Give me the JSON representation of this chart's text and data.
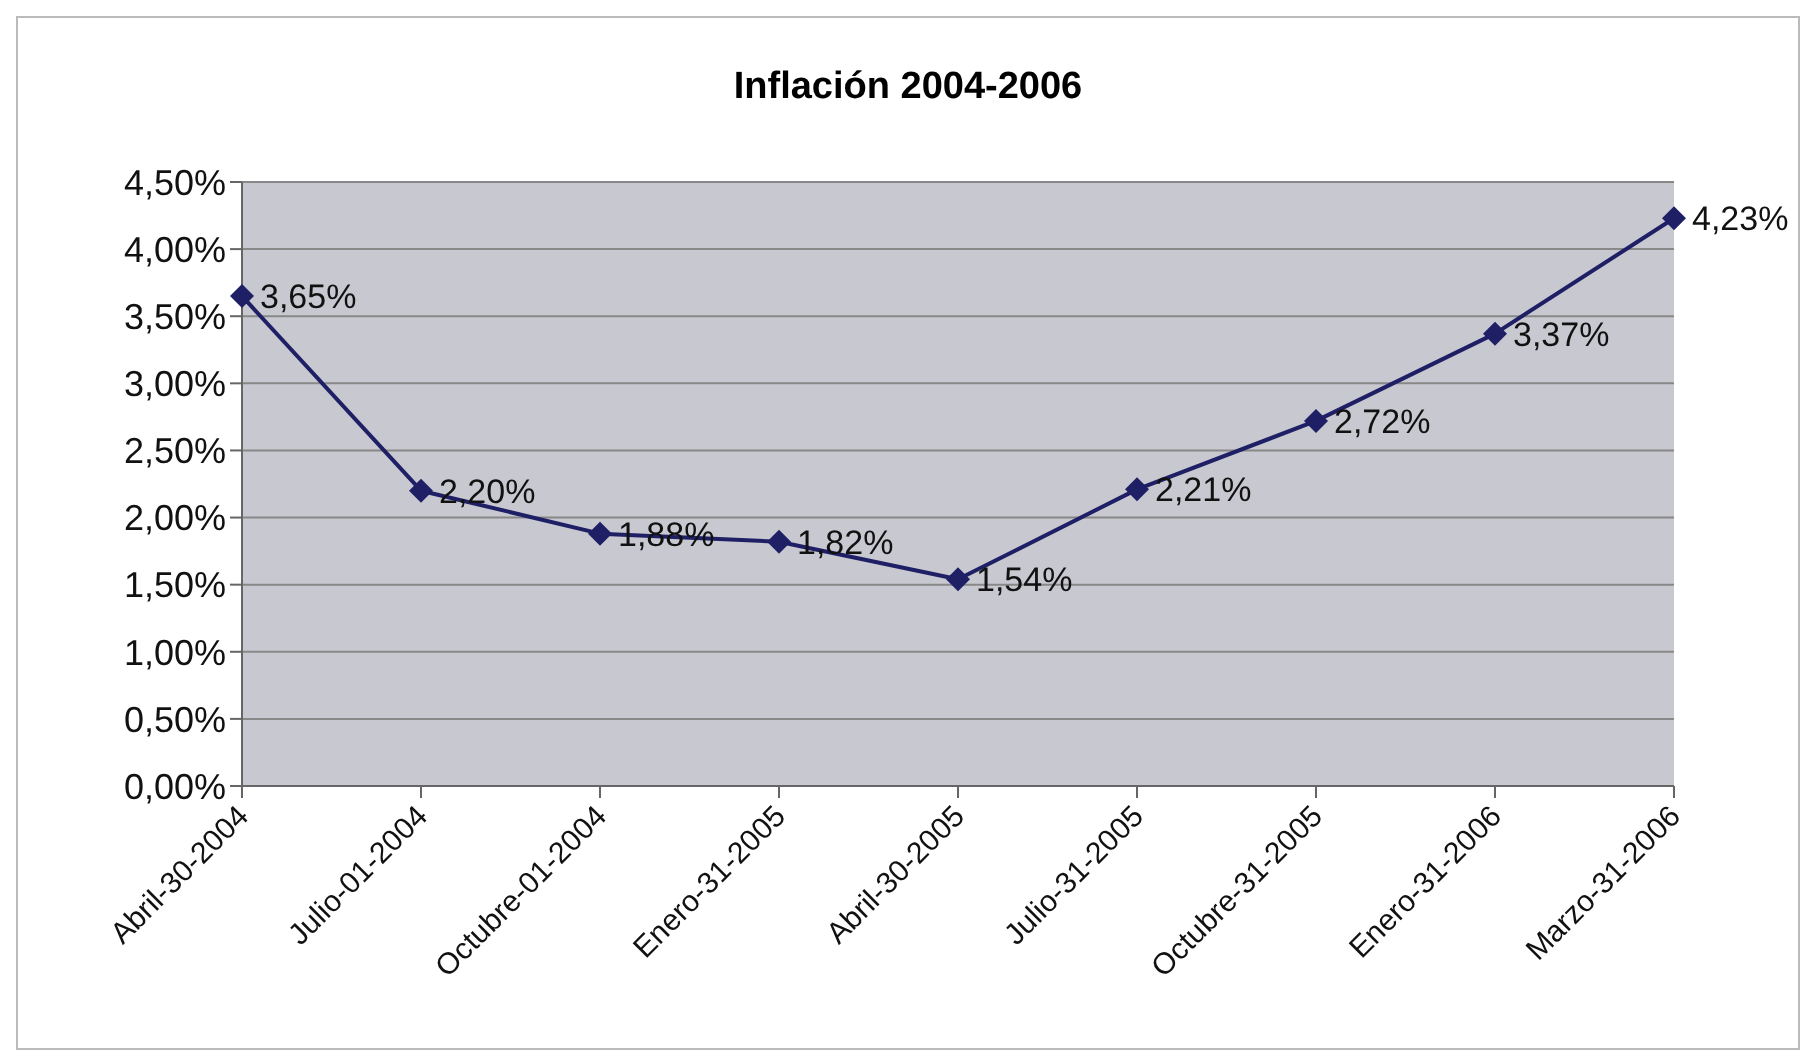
{
  "chart_data": {
    "type": "line",
    "title": "Inflación 2004-2006",
    "categories": [
      "Abril-30-2004",
      "Julio-01-2004",
      "Octubre-01-2004",
      "Enero-31-2005",
      "Abril-30-2005",
      "Julio-31-2005",
      "Octubre-31-2005",
      "Enero-31-2006",
      "Marzo-31-2006"
    ],
    "series": [
      {
        "color": "#1f1f66",
        "values": [
          3.65,
          2.2,
          1.88,
          1.82,
          1.54,
          2.21,
          2.72,
          3.37,
          4.23
        ],
        "value_labels": [
          "3,65%",
          "2,20%",
          "1,88%",
          "1,82%",
          "1,54%",
          "2,21%",
          "2,72%",
          "3,37%",
          "4,23%"
        ]
      }
    ],
    "ylim": [
      0,
      4.5
    ],
    "yticks": [
      {
        "value": 0,
        "label": "0,00%"
      },
      {
        "value": 0.5,
        "label": "0,50%"
      },
      {
        "value": 1,
        "label": "1,00%"
      },
      {
        "value": 1.5,
        "label": "1,50%"
      },
      {
        "value": 2,
        "label": "2,00%"
      },
      {
        "value": 2.5,
        "label": "2,50%"
      },
      {
        "value": 3,
        "label": "3,00%"
      },
      {
        "value": 3.5,
        "label": "3,50%"
      },
      {
        "value": 4,
        "label": "4,00%"
      },
      {
        "value": 4.5,
        "label": "4,50%"
      }
    ],
    "grid": "y",
    "legend": false,
    "marker": "diamond",
    "line_style": "solid"
  }
}
